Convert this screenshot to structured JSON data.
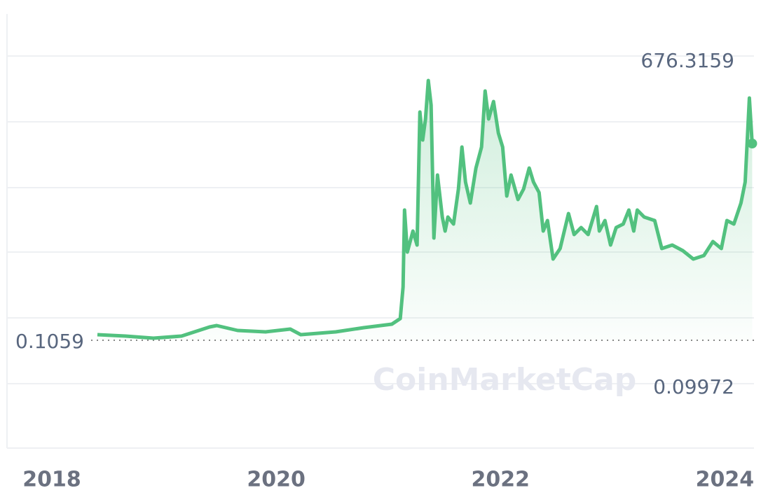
{
  "chart_data": {
    "type": "line",
    "watermark": "CoinMarketCap",
    "high": 676.3159,
    "low": 0.1059,
    "volume_label": "0.09972",
    "xlim": [
      2017.6,
      2024.26
    ],
    "xticks": [
      2018,
      2020,
      2022,
      2024
    ],
    "ylim": [
      -280.6,
      849.5
    ],
    "color": "#52c17f",
    "x": [
      2018.406,
      2018.656,
      2018.906,
      2019.156,
      2019.406,
      2019.469,
      2019.656,
      2019.906,
      2020.125,
      2020.219,
      2020.531,
      2020.781,
      2021.031,
      2021.106,
      2021.131,
      2021.144,
      2021.169,
      2021.219,
      2021.256,
      2021.281,
      2021.306,
      2021.331,
      2021.356,
      2021.381,
      2021.406,
      2021.438,
      2021.481,
      2021.506,
      2021.531,
      2021.581,
      2021.625,
      2021.656,
      2021.688,
      2021.731,
      2021.781,
      2021.831,
      2021.863,
      2021.894,
      2021.938,
      2021.981,
      2022.019,
      2022.056,
      2022.094,
      2022.156,
      2022.206,
      2022.256,
      2022.294,
      2022.344,
      2022.381,
      2022.419,
      2022.469,
      2022.531,
      2022.606,
      2022.656,
      2022.719,
      2022.781,
      2022.856,
      2022.881,
      2022.931,
      2022.981,
      2023.031,
      2023.094,
      2023.144,
      2023.188,
      2023.219,
      2023.281,
      2023.375,
      2023.438,
      2023.531,
      2023.625,
      2023.719,
      2023.813,
      2023.894,
      2023.969,
      2024.019,
      2024.081,
      2024.144,
      2024.181,
      2024.219,
      2024.244
    ],
    "values": [
      14.7,
      11.1,
      5.6,
      11.1,
      34.7,
      38.4,
      25.6,
      22.0,
      29.3,
      14.7,
      22.0,
      32.9,
      42.0,
      56.6,
      138.6,
      339.1,
      229.8,
      284.4,
      248.0,
      594.3,
      521.4,
      576.1,
      676.3159,
      612.5,
      266.2,
      430.3,
      320.9,
      284.4,
      320.9,
      302.7,
      393.8,
      503.2,
      412.0,
      357.4,
      448.5,
      503.2,
      649.0,
      576.1,
      621.6,
      539.6,
      503.2,
      375.6,
      430.3,
      366.5,
      393.8,
      448.5,
      412.0,
      384.7,
      284.4,
      311.8,
      211.5,
      238.9,
      330.0,
      275.3,
      293.6,
      275.3,
      348.2,
      284.4,
      311.8,
      248.0,
      293.6,
      302.7,
      339.1,
      284.4,
      339.1,
      320.9,
      311.8,
      238.9,
      248.0,
      233.4,
      211.5,
      220.6,
      257.1,
      238.9,
      311.8,
      302.7,
      357.4,
      412.0,
      630.8,
      512.3
    ]
  }
}
